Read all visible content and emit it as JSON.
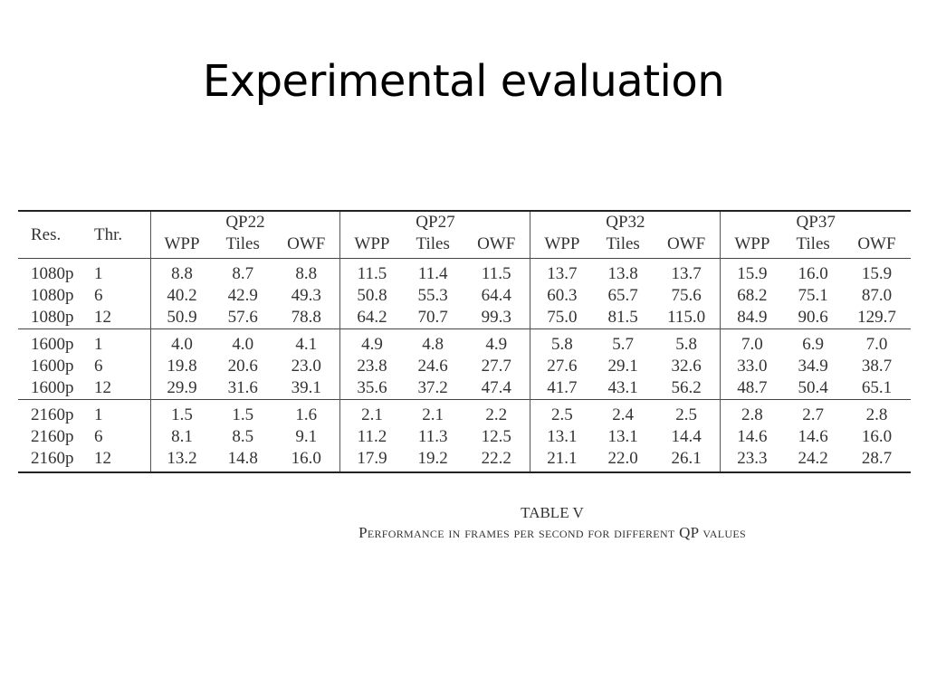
{
  "slide_title": "Experimental evaluation",
  "table": {
    "header_res": "Res.",
    "header_thr": "Thr.",
    "qp_groups": [
      "QP22",
      "QP27",
      "QP32",
      "QP37"
    ],
    "sub_headers": [
      "WPP",
      "Tiles",
      "OWF"
    ],
    "rows": [
      [
        "1080p",
        "1",
        "8.8",
        "8.7",
        "8.8",
        "11.5",
        "11.4",
        "11.5",
        "13.7",
        "13.8",
        "13.7",
        "15.9",
        "16.0",
        "15.9"
      ],
      [
        "1080p",
        "6",
        "40.2",
        "42.9",
        "49.3",
        "50.8",
        "55.3",
        "64.4",
        "60.3",
        "65.7",
        "75.6",
        "68.2",
        "75.1",
        "87.0"
      ],
      [
        "1080p",
        "12",
        "50.9",
        "57.6",
        "78.8",
        "64.2",
        "70.7",
        "99.3",
        "75.0",
        "81.5",
        "115.0",
        "84.9",
        "90.6",
        "129.7"
      ],
      [
        "1600p",
        "1",
        "4.0",
        "4.0",
        "4.1",
        "4.9",
        "4.8",
        "4.9",
        "5.8",
        "5.7",
        "5.8",
        "7.0",
        "6.9",
        "7.0"
      ],
      [
        "1600p",
        "6",
        "19.8",
        "20.6",
        "23.0",
        "23.8",
        "24.6",
        "27.7",
        "27.6",
        "29.1",
        "32.6",
        "33.0",
        "34.9",
        "38.7"
      ],
      [
        "1600p",
        "12",
        "29.9",
        "31.6",
        "39.1",
        "35.6",
        "37.2",
        "47.4",
        "41.7",
        "43.1",
        "56.2",
        "48.7",
        "50.4",
        "65.1"
      ],
      [
        "2160p",
        "1",
        "1.5",
        "1.5",
        "1.6",
        "2.1",
        "2.1",
        "2.2",
        "2.5",
        "2.4",
        "2.5",
        "2.8",
        "2.7",
        "2.8"
      ],
      [
        "2160p",
        "6",
        "8.1",
        "8.5",
        "9.1",
        "11.2",
        "11.3",
        "12.5",
        "13.1",
        "13.1",
        "14.4",
        "14.6",
        "14.6",
        "16.0"
      ],
      [
        "2160p",
        "12",
        "13.2",
        "14.8",
        "16.0",
        "17.9",
        "19.2",
        "22.2",
        "21.1",
        "22.0",
        "26.1",
        "23.3",
        "24.2",
        "28.7"
      ]
    ]
  },
  "caption": {
    "label": "TABLE V",
    "text": "Performance in frames per second for different QP values"
  }
}
